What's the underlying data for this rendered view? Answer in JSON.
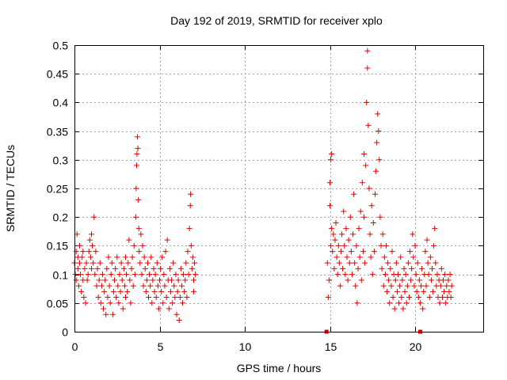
{
  "chart_data": {
    "type": "scatter",
    "title": "Day 192 of 2019, SRMTID for receiver xplo",
    "xlabel": "GPS time / hours",
    "ylabel": "SRMTID / TECUs",
    "xlim": [
      0,
      24
    ],
    "ylim": [
      0,
      0.5
    ],
    "grid": true,
    "marker": "+",
    "point_color": "#e00000",
    "x_ticks": [
      0,
      5,
      10,
      15,
      20
    ],
    "x_tick_labels": [
      "0",
      "5",
      "10",
      "15",
      "20"
    ],
    "y_ticks": [
      0,
      0.05,
      0.1,
      0.15,
      0.2,
      0.25,
      0.3,
      0.35,
      0.4,
      0.45,
      0.5
    ],
    "y_tick_labels": [
      "0",
      "0.05",
      "0.1",
      "0.15",
      "0.2",
      "0.25",
      "0.3",
      "0.35",
      "0.4",
      "0.45",
      "0.5"
    ],
    "zero_markers_x": [
      14.8,
      20.3
    ],
    "series": [
      {
        "points": [
          [
            0.0,
            0.12
          ],
          [
            0.05,
            0.1
          ],
          [
            0.1,
            0.14
          ],
          [
            0.1,
            0.09
          ],
          [
            0.15,
            0.17
          ],
          [
            0.2,
            0.13
          ],
          [
            0.2,
            0.11
          ],
          [
            0.25,
            0.08
          ],
          [
            0.3,
            0.15
          ],
          [
            0.3,
            0.12
          ],
          [
            0.35,
            0.1
          ],
          [
            0.4,
            0.07
          ],
          [
            0.45,
            0.13
          ],
          [
            0.5,
            0.09
          ],
          [
            0.5,
            0.14
          ],
          [
            0.55,
            0.06
          ],
          [
            0.6,
            0.11
          ],
          [
            0.65,
            0.05
          ],
          [
            0.7,
            0.12
          ],
          [
            0.75,
            0.09
          ],
          [
            0.8,
            0.1
          ],
          [
            0.85,
            0.14
          ],
          [
            0.9,
            0.16
          ],
          [
            0.95,
            0.13
          ],
          [
            1.0,
            0.17
          ],
          [
            1.0,
            0.11
          ],
          [
            1.05,
            0.15
          ],
          [
            1.1,
            0.12
          ],
          [
            1.15,
            0.2
          ],
          [
            1.2,
            0.1
          ],
          [
            1.25,
            0.14
          ],
          [
            1.3,
            0.08
          ],
          [
            1.35,
            0.11
          ],
          [
            1.4,
            0.06
          ],
          [
            1.45,
            0.09
          ],
          [
            1.5,
            0.12
          ],
          [
            1.55,
            0.05
          ],
          [
            1.6,
            0.08
          ],
          [
            1.65,
            0.1
          ],
          [
            1.7,
            0.04
          ],
          [
            1.75,
            0.07
          ],
          [
            1.8,
            0.09
          ],
          [
            1.85,
            0.03
          ],
          [
            1.9,
            0.11
          ],
          [
            1.95,
            0.06
          ],
          [
            2.0,
            0.13
          ],
          [
            2.05,
            0.08
          ],
          [
            2.1,
            0.05
          ],
          [
            2.15,
            0.1
          ],
          [
            2.2,
            0.12
          ],
          [
            2.25,
            0.03
          ],
          [
            2.3,
            0.07
          ],
          [
            2.35,
            0.09
          ],
          [
            2.4,
            0.11
          ],
          [
            2.45,
            0.06
          ],
          [
            2.5,
            0.13
          ],
          [
            2.55,
            0.08
          ],
          [
            2.6,
            0.05
          ],
          [
            2.65,
            0.1
          ],
          [
            2.7,
            0.07
          ],
          [
            2.75,
            0.12
          ],
          [
            2.8,
            0.09
          ],
          [
            2.85,
            0.04
          ],
          [
            2.9,
            0.11
          ],
          [
            2.95,
            0.08
          ],
          [
            3.0,
            0.13
          ],
          [
            3.0,
            0.06
          ],
          [
            3.05,
            0.1
          ],
          [
            3.1,
            0.07
          ],
          [
            3.15,
            0.12
          ],
          [
            3.2,
            0.16
          ],
          [
            3.25,
            0.09
          ],
          [
            3.3,
            0.05
          ],
          [
            3.35,
            0.11
          ],
          [
            3.4,
            0.13
          ],
          [
            3.45,
            0.08
          ],
          [
            3.5,
            0.15
          ],
          [
            3.55,
            0.1
          ],
          [
            3.6,
            0.2
          ],
          [
            3.62,
            0.25
          ],
          [
            3.65,
            0.29
          ],
          [
            3.67,
            0.31
          ],
          [
            3.7,
            0.34
          ],
          [
            3.72,
            0.32
          ],
          [
            3.75,
            0.23
          ],
          [
            3.78,
            0.18
          ],
          [
            3.8,
            0.14
          ],
          [
            3.85,
            0.12
          ],
          [
            3.9,
            0.17
          ],
          [
            3.95,
            0.1
          ],
          [
            4.0,
            0.15
          ],
          [
            4.05,
            0.08
          ],
          [
            4.1,
            0.13
          ],
          [
            4.15,
            0.11
          ],
          [
            4.2,
            0.07
          ],
          [
            4.25,
            0.09
          ],
          [
            4.3,
            0.12
          ],
          [
            4.35,
            0.06
          ],
          [
            4.4,
            0.1
          ],
          [
            4.45,
            0.08
          ],
          [
            4.5,
            0.13
          ],
          [
            4.55,
            0.05
          ],
          [
            4.6,
            0.09
          ],
          [
            4.65,
            0.11
          ],
          [
            4.7,
            0.07
          ],
          [
            4.75,
            0.1
          ],
          [
            4.8,
            0.06
          ],
          [
            4.85,
            0.12
          ],
          [
            4.9,
            0.08
          ],
          [
            4.95,
            0.04
          ],
          [
            5.0,
            0.09
          ],
          [
            5.05,
            0.11
          ],
          [
            5.1,
            0.07
          ],
          [
            5.15,
            0.13
          ],
          [
            5.2,
            0.05
          ],
          [
            5.25,
            0.1
          ],
          [
            5.3,
            0.08
          ],
          [
            5.35,
            0.14
          ],
          [
            5.4,
            0.06
          ],
          [
            5.45,
            0.16
          ],
          [
            5.5,
            0.09
          ],
          [
            5.55,
            0.04
          ],
          [
            5.6,
            0.11
          ],
          [
            5.65,
            0.07
          ],
          [
            5.7,
            0.09
          ],
          [
            5.75,
            0.05
          ],
          [
            5.8,
            0.12
          ],
          [
            5.85,
            0.08
          ],
          [
            5.9,
            0.06
          ],
          [
            5.95,
            0.1
          ],
          [
            6.0,
            0.03
          ],
          [
            6.05,
            0.07
          ],
          [
            6.1,
            0.09
          ],
          [
            6.15,
            0.02
          ],
          [
            6.2,
            0.06
          ],
          [
            6.25,
            0.11
          ],
          [
            6.3,
            0.08
          ],
          [
            6.35,
            0.05
          ],
          [
            6.4,
            0.1
          ],
          [
            6.45,
            0.07
          ],
          [
            6.5,
            0.09
          ],
          [
            6.55,
            0.12
          ],
          [
            6.6,
            0.06
          ],
          [
            6.65,
            0.14
          ],
          [
            6.7,
            0.1
          ],
          [
            6.75,
            0.18
          ],
          [
            6.8,
            0.22
          ],
          [
            6.82,
            0.24
          ],
          [
            6.85,
            0.15
          ],
          [
            6.9,
            0.11
          ],
          [
            6.95,
            0.13
          ],
          [
            7.0,
            0.09
          ],
          [
            7.0,
            0.07
          ],
          [
            7.05,
            0.12
          ],
          [
            7.1,
            0.1
          ],
          [
            14.85,
            0.12
          ],
          [
            14.9,
            0.06
          ],
          [
            14.95,
            0.09
          ],
          [
            15.0,
            0.22
          ],
          [
            15.0,
            0.26
          ],
          [
            15.05,
            0.15
          ],
          [
            15.05,
            0.3
          ],
          [
            15.1,
            0.31
          ],
          [
            15.1,
            0.18
          ],
          [
            15.15,
            0.14
          ],
          [
            15.2,
            0.17
          ],
          [
            15.25,
            0.11
          ],
          [
            15.3,
            0.16
          ],
          [
            15.35,
            0.19
          ],
          [
            15.4,
            0.13
          ],
          [
            15.45,
            0.1
          ],
          [
            15.5,
            0.15
          ],
          [
            15.55,
            0.12
          ],
          [
            15.6,
            0.08
          ],
          [
            15.65,
            0.14
          ],
          [
            15.7,
            0.17
          ],
          [
            15.75,
            0.11
          ],
          [
            15.8,
            0.21
          ],
          [
            15.85,
            0.15
          ],
          [
            15.9,
            0.1
          ],
          [
            15.95,
            0.18
          ],
          [
            16.0,
            0.13
          ],
          [
            16.05,
            0.09
          ],
          [
            16.1,
            0.16
          ],
          [
            16.15,
            0.12
          ],
          [
            16.2,
            0.2
          ],
          [
            16.25,
            0.14
          ],
          [
            16.3,
            0.1
          ],
          [
            16.35,
            0.17
          ],
          [
            16.4,
            0.24
          ],
          [
            16.45,
            0.12
          ],
          [
            16.5,
            0.08
          ],
          [
            16.55,
            0.15
          ],
          [
            16.6,
            0.05
          ],
          [
            16.65,
            0.11
          ],
          [
            16.7,
            0.18
          ],
          [
            16.75,
            0.13
          ],
          [
            16.8,
            0.21
          ],
          [
            16.85,
            0.09
          ],
          [
            16.9,
            0.26
          ],
          [
            16.95,
            0.14
          ],
          [
            17.0,
            0.31
          ],
          [
            17.0,
            0.2
          ],
          [
            17.05,
            0.12
          ],
          [
            17.1,
            0.29
          ],
          [
            17.15,
            0.4
          ],
          [
            17.2,
            0.46
          ],
          [
            17.2,
            0.49
          ],
          [
            17.25,
            0.36
          ],
          [
            17.3,
            0.25
          ],
          [
            17.35,
            0.17
          ],
          [
            17.4,
            0.13
          ],
          [
            17.45,
            0.22
          ],
          [
            17.5,
            0.1
          ],
          [
            17.55,
            0.19
          ],
          [
            17.6,
            0.14
          ],
          [
            17.65,
            0.24
          ],
          [
            17.7,
            0.28
          ],
          [
            17.75,
            0.33
          ],
          [
            17.8,
            0.38
          ],
          [
            17.85,
            0.35
          ],
          [
            17.9,
            0.3
          ],
          [
            17.95,
            0.2
          ],
          [
            18.0,
            0.15
          ],
          [
            18.05,
            0.11
          ],
          [
            18.1,
            0.17
          ],
          [
            18.15,
            0.08
          ],
          [
            18.2,
            0.13
          ],
          [
            18.25,
            0.1
          ],
          [
            18.3,
            0.15
          ],
          [
            18.35,
            0.07
          ],
          [
            18.4,
            0.12
          ],
          [
            18.45,
            0.09
          ],
          [
            18.5,
            0.05
          ],
          [
            18.55,
            0.11
          ],
          [
            18.6,
            0.08
          ],
          [
            18.65,
            0.14
          ],
          [
            18.7,
            0.06
          ],
          [
            18.75,
            0.1
          ],
          [
            18.8,
            0.04
          ],
          [
            18.85,
            0.09
          ],
          [
            18.9,
            0.12
          ],
          [
            18.95,
            0.07
          ],
          [
            19.0,
            0.1
          ],
          [
            19.05,
            0.05
          ],
          [
            19.1,
            0.08
          ],
          [
            19.15,
            0.13
          ],
          [
            19.2,
            0.06
          ],
          [
            19.25,
            0.09
          ],
          [
            19.3,
            0.04
          ],
          [
            19.35,
            0.11
          ],
          [
            19.4,
            0.07
          ],
          [
            19.45,
            0.1
          ],
          [
            19.5,
            0.05
          ],
          [
            19.55,
            0.08
          ],
          [
            19.6,
            0.12
          ],
          [
            19.65,
            0.06
          ],
          [
            19.7,
            0.14
          ],
          [
            19.75,
            0.09
          ],
          [
            19.8,
            0.11
          ],
          [
            19.85,
            0.17
          ],
          [
            19.9,
            0.13
          ],
          [
            19.95,
            0.08
          ],
          [
            20.0,
            0.15
          ],
          [
            20.05,
            0.1
          ],
          [
            20.1,
            0.07
          ],
          [
            20.15,
            0.12
          ],
          [
            20.2,
            0.06
          ],
          [
            20.25,
            0.09
          ],
          [
            20.3,
            0.05
          ],
          [
            20.35,
            0.08
          ],
          [
            20.4,
            0.11
          ],
          [
            20.45,
            0.04
          ],
          [
            20.5,
            0.07
          ],
          [
            20.55,
            0.1
          ],
          [
            20.6,
            0.14
          ],
          [
            20.65,
            0.08
          ],
          [
            20.7,
            0.16
          ],
          [
            20.75,
            0.12
          ],
          [
            20.8,
            0.1
          ],
          [
            20.85,
            0.06
          ],
          [
            20.9,
            0.13
          ],
          [
            20.95,
            0.09
          ],
          [
            21.0,
            0.11
          ],
          [
            21.05,
            0.07
          ],
          [
            21.1,
            0.15
          ],
          [
            21.15,
            0.18
          ],
          [
            21.2,
            0.12
          ],
          [
            21.25,
            0.08
          ],
          [
            21.3,
            0.1
          ],
          [
            21.35,
            0.06
          ],
          [
            21.4,
            0.09
          ],
          [
            21.45,
            0.05
          ],
          [
            21.5,
            0.08
          ],
          [
            21.55,
            0.11
          ],
          [
            21.6,
            0.06
          ],
          [
            21.65,
            0.09
          ],
          [
            21.7,
            0.07
          ],
          [
            21.75,
            0.1
          ],
          [
            21.8,
            0.05
          ],
          [
            21.85,
            0.08
          ],
          [
            21.9,
            0.06
          ],
          [
            21.95,
            0.09
          ],
          [
            22.0,
            0.07
          ],
          [
            22.05,
            0.1
          ],
          [
            22.1,
            0.06
          ],
          [
            22.15,
            0.08
          ]
        ]
      }
    ]
  }
}
